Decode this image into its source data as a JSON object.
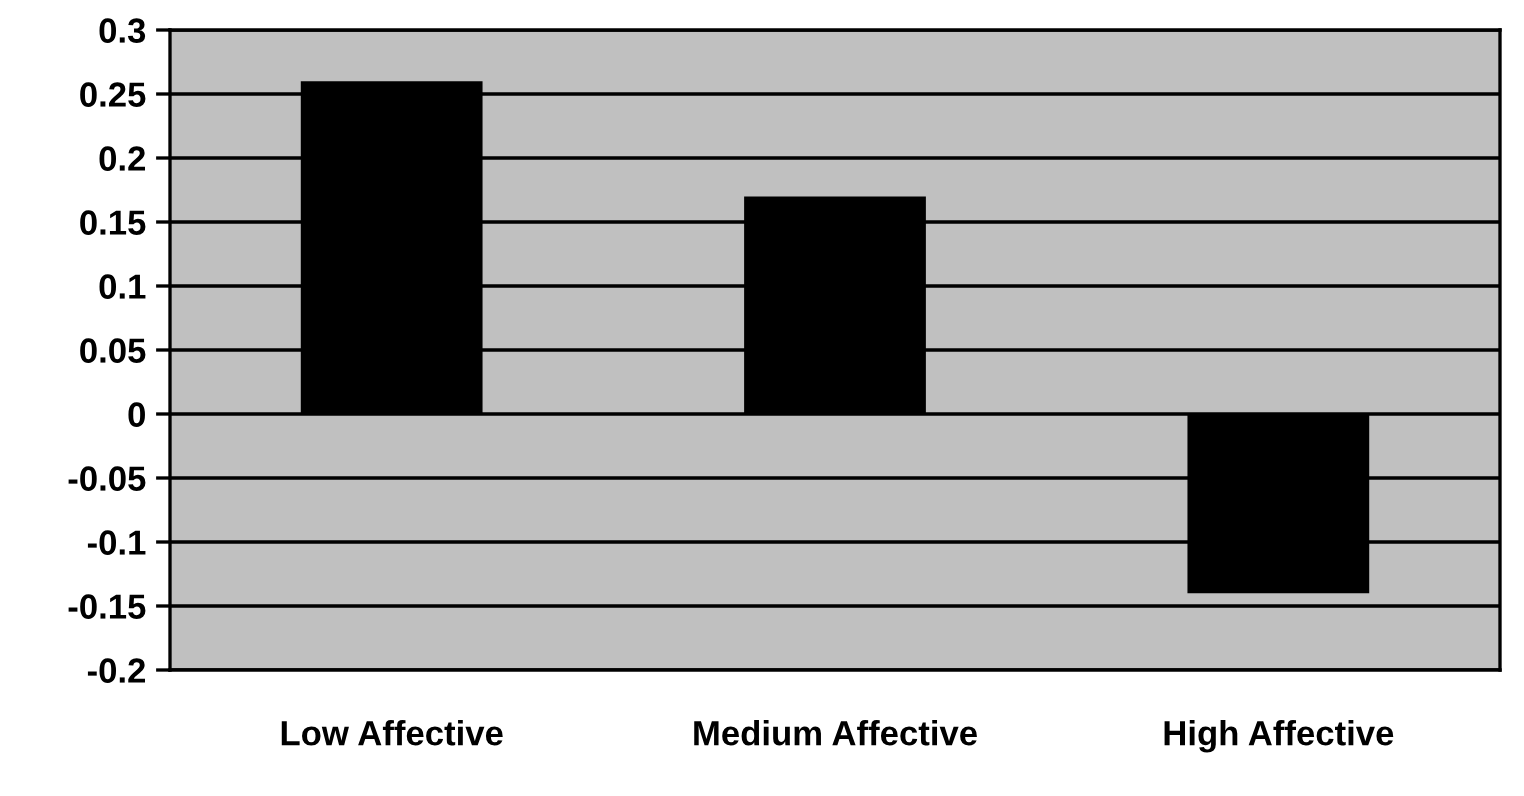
{
  "chart_data": {
    "type": "bar",
    "categories": [
      "Low Affective",
      "Medium Affective",
      "High Affective"
    ],
    "values": [
      0.26,
      0.17,
      -0.14
    ],
    "color": "#000000",
    "ylim": [
      -0.2,
      0.3
    ],
    "yticks": [
      {
        "value": -0.2,
        "label": "-0.2"
      },
      {
        "value": -0.15,
        "label": "-0.15"
      },
      {
        "value": -0.1,
        "label": "-0.1"
      },
      {
        "value": -0.05,
        "label": "-0.05"
      },
      0,
      {
        "value": 0.05,
        "label": "0.05"
      },
      {
        "value": 0.1,
        "label": "0.1"
      },
      {
        "value": 0.15,
        "label": "0.15"
      },
      {
        "value": 0.2,
        "label": "0.2"
      },
      {
        "value": 0.25,
        "label": "0.25"
      },
      {
        "value": 0.3,
        "label": "0.3"
      }
    ],
    "grid": "y"
  }
}
